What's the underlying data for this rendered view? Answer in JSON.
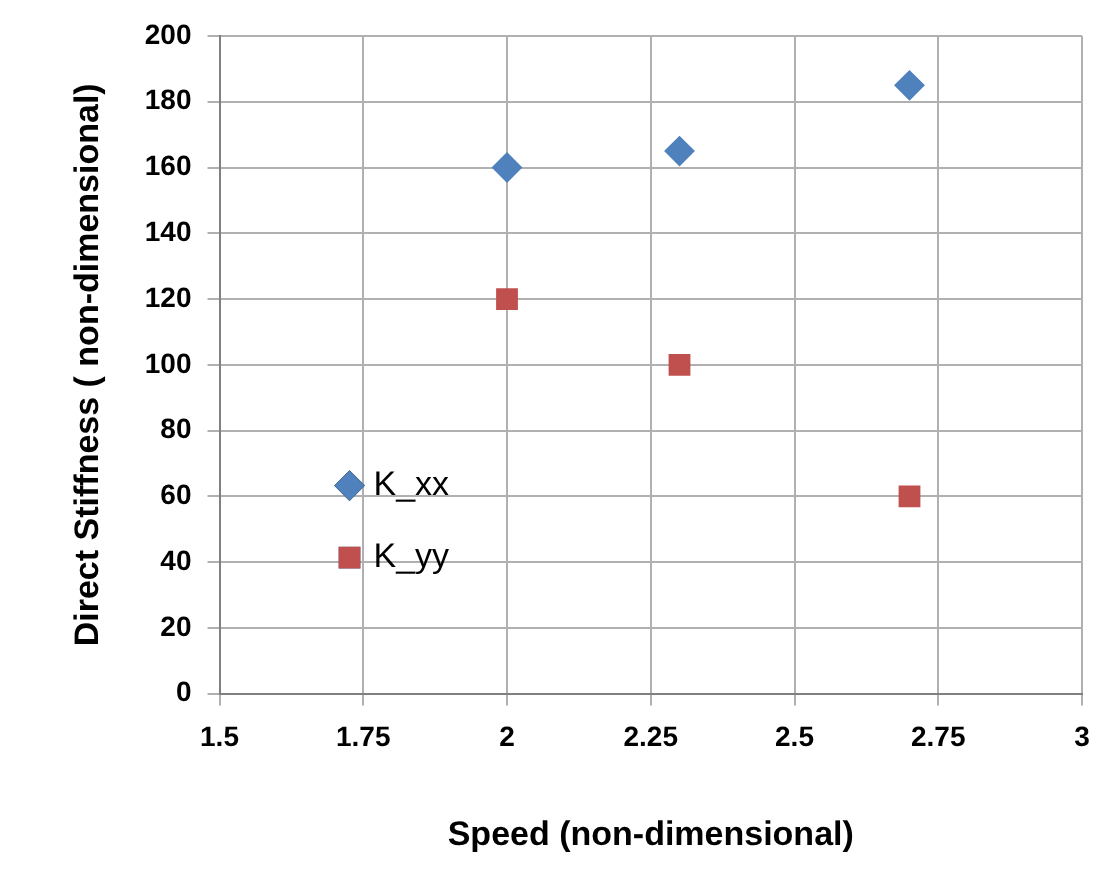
{
  "chart_data": {
    "type": "scatter",
    "xlabel": "Speed (non-dimensional)",
    "ylabel": "Direct Stiffness ( non-dimensional)",
    "xlim": [
      1.5,
      3
    ],
    "xticks": [
      1.5,
      1.75,
      2,
      2.25,
      2.5,
      2.75,
      3
    ],
    "ylim": [
      0,
      200
    ],
    "yticks": [
      0,
      20,
      40,
      60,
      80,
      100,
      120,
      140,
      160,
      180,
      200
    ],
    "grid": true,
    "legend": "bottom left",
    "series": [
      {
        "name": "K_xx",
        "color": "#4f81bd",
        "marker": "diamond",
        "x": [
          2,
          2.3,
          2.7
        ],
        "values": [
          160,
          165,
          185
        ]
      },
      {
        "name": "K_yy",
        "color": "#c0504d",
        "marker": "square",
        "x": [
          2,
          2.3,
          2.7
        ],
        "values": [
          120,
          100,
          60
        ]
      }
    ]
  }
}
